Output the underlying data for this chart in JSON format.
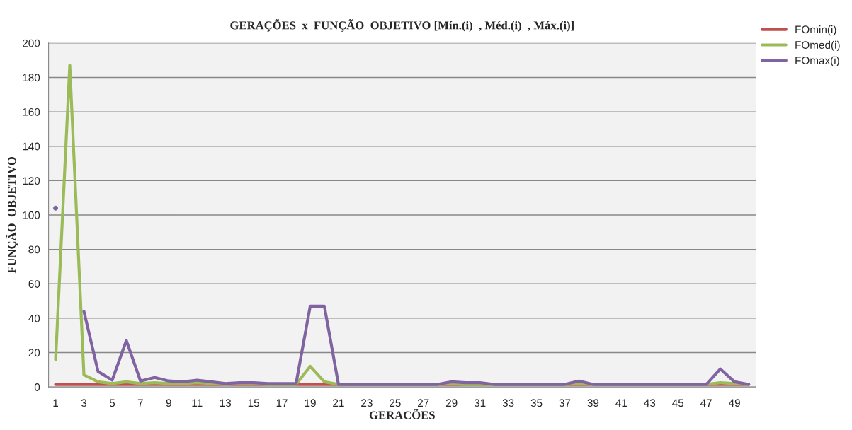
{
  "chart_data": {
    "type": "line",
    "title": "GERAÇÕES  x  FUNÇÃO  OBJETIVO [Mín.(i)  , Méd.(i)  , Máx.(i)]",
    "xlabel": "GERACÕES",
    "ylabel": "FUNÇÃO  OBJETIVO",
    "categories": [
      "1",
      null,
      "3",
      null,
      "5",
      null,
      "7",
      null,
      "9",
      null,
      "11",
      null,
      "13",
      null,
      "15",
      null,
      "17",
      null,
      "19",
      null,
      "21",
      null,
      "23",
      null,
      "25",
      null,
      "27",
      null,
      "29",
      null,
      "31",
      null,
      "33",
      null,
      "35",
      null,
      "37",
      null,
      "39",
      null,
      "41",
      null,
      "43",
      null,
      "45",
      null,
      "47",
      null,
      "49",
      null
    ],
    "series": [
      {
        "name": "FOmin(i)",
        "color": "#c0504d",
        "values": [
          1.5,
          1.5,
          1.5,
          1.5,
          1.5,
          1.5,
          1.5,
          1.5,
          1.5,
          1.5,
          1.5,
          1.5,
          1.5,
          1.5,
          1.5,
          1.5,
          1.5,
          1.5,
          1.5,
          1.5,
          1.5,
          1.5,
          1.5,
          1.5,
          1.5,
          1.5,
          1.5,
          1.5,
          1.5,
          1.5,
          1.5,
          1.5,
          1.5,
          1.5,
          1.5,
          1.5,
          1.5,
          1.5,
          1.5,
          1.5,
          1.5,
          1.5,
          1.5,
          1.5,
          1.5,
          1.5,
          1.5,
          1.5,
          1.5,
          1.5
        ]
      },
      {
        "name": "FOmed(i)",
        "color": "#9bbb59",
        "values": [
          16,
          187,
          7,
          3,
          2,
          3,
          2,
          2.5,
          2,
          2,
          2.5,
          2,
          1.5,
          2,
          2,
          1.5,
          1.5,
          1.5,
          12,
          3,
          1.5,
          1.5,
          1.5,
          1.5,
          1.5,
          1.5,
          1.5,
          1.5,
          2,
          1.5,
          1.5,
          1.5,
          1.5,
          1.5,
          1.5,
          1.5,
          1.5,
          2,
          1.5,
          1.5,
          1.5,
          1.5,
          1.5,
          1.5,
          1.5,
          1.5,
          1.5,
          2.5,
          2,
          1.5
        ]
      },
      {
        "name": "FOmax(i)",
        "color": "#8064a2",
        "values": [
          104,
          null,
          44,
          9,
          4,
          27,
          3.5,
          5.5,
          3.5,
          3,
          4,
          3,
          2,
          2.5,
          2.5,
          2,
          2,
          2,
          47,
          47,
          1.5,
          1.5,
          1.5,
          1.5,
          1.5,
          1.5,
          1.5,
          1.5,
          3,
          2.5,
          2.5,
          1.5,
          1.5,
          1.5,
          1.5,
          1.5,
          1.5,
          3.5,
          1.5,
          1.5,
          1.5,
          1.5,
          1.5,
          1.5,
          1.5,
          1.5,
          1.5,
          10.5,
          3,
          1.5
        ]
      }
    ],
    "ylim": [
      0,
      200
    ],
    "yticks": [
      0,
      20,
      40,
      60,
      80,
      100,
      120,
      140,
      160,
      180,
      200
    ],
    "grid": "y",
    "legend": "top right",
    "marker": "none",
    "line_style": "solid"
  }
}
